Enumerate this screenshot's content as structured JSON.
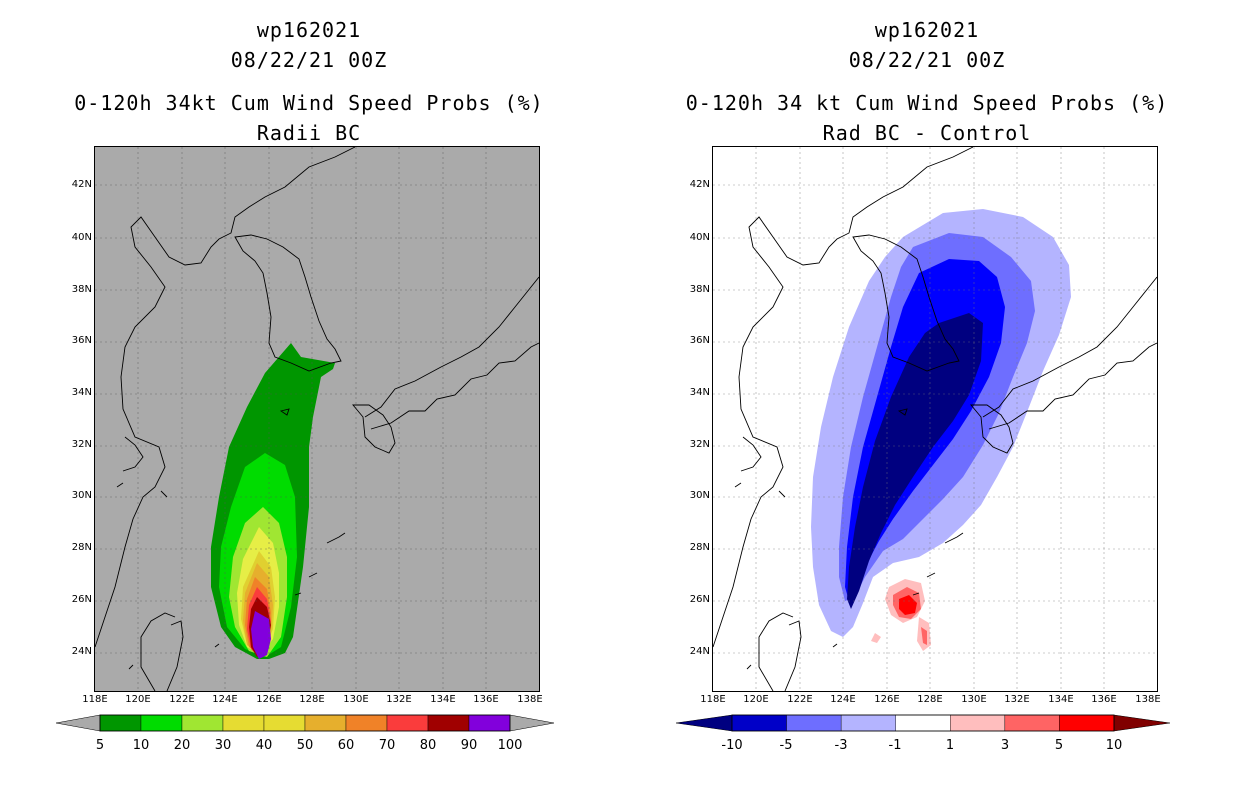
{
  "left": {
    "storm_id": "wp162021",
    "datetime": "08/22/21 00Z",
    "title": "0-120h 34kt Cum Wind Speed Probs (%)",
    "subtitle": "Radii BC",
    "lat_labels": [
      "42N",
      "40N",
      "38N",
      "36N",
      "34N",
      "32N",
      "30N",
      "28N",
      "26N",
      "24N"
    ],
    "lon_labels": [
      "118E",
      "120E",
      "122E",
      "124E",
      "126E",
      "128E",
      "130E",
      "132E",
      "134E",
      "136E",
      "138E"
    ],
    "colorbar": {
      "labels": [
        "5",
        "10",
        "20",
        "30",
        "40",
        "50",
        "60",
        "70",
        "80",
        "90",
        "100"
      ],
      "colors": [
        "#009600",
        "#00dc00",
        "#a0e632",
        "#e6dc32",
        "#e6dc32",
        "#e6af2d",
        "#f08228",
        "#fa3c3c",
        "#a00000",
        "#8200dc"
      ]
    }
  },
  "right": {
    "storm_id": "wp162021",
    "datetime": "08/22/21 00Z",
    "title": "0-120h 34 kt Cum Wind Speed Probs (%)",
    "subtitle": "Rad BC - Control",
    "lat_labels": [
      "42N",
      "40N",
      "38N",
      "36N",
      "34N",
      "32N",
      "30N",
      "28N",
      "26N",
      "24N"
    ],
    "lon_labels": [
      "118E",
      "120E",
      "122E",
      "124E",
      "126E",
      "128E",
      "130E",
      "132E",
      "134E",
      "136E",
      "138E"
    ],
    "colorbar": {
      "labels": [
        "-10",
        "-5",
        "-3",
        "-1",
        "1",
        "3",
        "5",
        "10"
      ],
      "colors": [
        "#0000c8",
        "#6e6eff",
        "#b4b4ff",
        "#ffffff",
        "#ffbebe",
        "#ff6464",
        "#ff0000"
      ]
    }
  }
}
